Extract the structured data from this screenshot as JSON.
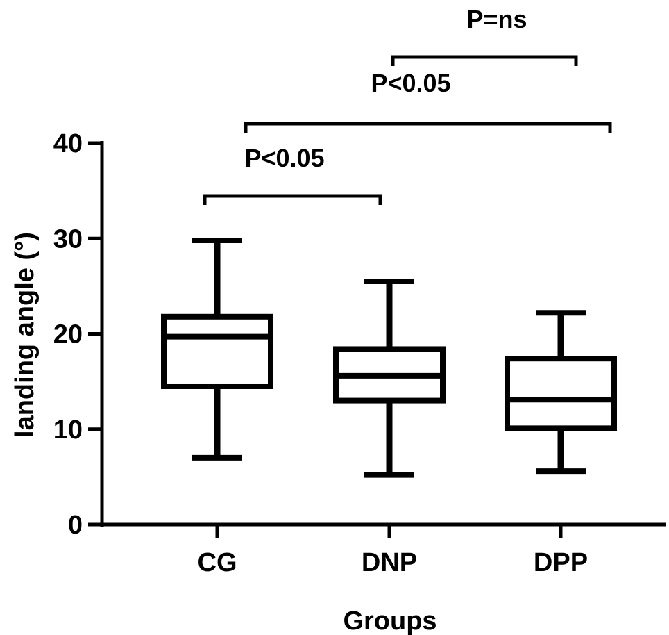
{
  "chart_data": {
    "type": "boxplot",
    "xlabel": "Groups",
    "ylabel": "landing angle (°)",
    "ylim": [
      0,
      40
    ],
    "yticks": [
      0,
      10,
      20,
      30,
      40
    ],
    "ytick_labels": [
      "0",
      "10",
      "20",
      "30",
      "40"
    ],
    "categories": [
      "CG",
      "DNP",
      "DPP"
    ],
    "boxes": [
      {
        "category": "CG",
        "min": 7.0,
        "q1": 14.5,
        "median": 19.7,
        "q3": 21.8,
        "max": 29.8
      },
      {
        "category": "DNP",
        "min": 5.2,
        "q1": 13.0,
        "median": 15.6,
        "q3": 18.4,
        "max": 25.5
      },
      {
        "category": "DPP",
        "min": 5.6,
        "q1": 10.1,
        "median": 13.1,
        "q3": 17.4,
        "max": 22.2
      }
    ],
    "comparisons": [
      {
        "from": "CG",
        "to": "DNP",
        "label": "P<0.05"
      },
      {
        "from": "CG",
        "to": "DPP",
        "label": "P<0.05"
      },
      {
        "from": "DNP",
        "to": "DPP",
        "label": "P=ns"
      }
    ],
    "grid": false,
    "legend": "none"
  }
}
